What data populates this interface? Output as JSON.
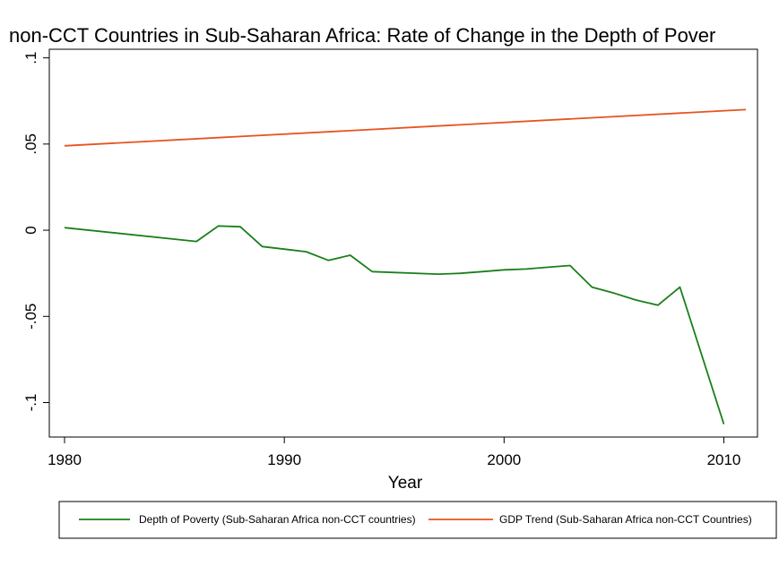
{
  "chart_data": {
    "type": "line",
    "title": "non-CCT Countries in Sub-Saharan Africa: Rate of Change in the Depth of Pover",
    "xlabel": "Year",
    "ylabel": "",
    "xlim": [
      1980,
      2011
    ],
    "ylim": [
      -0.12,
      0.105
    ],
    "x_ticks": [
      1980,
      1990,
      2000,
      2010
    ],
    "x_tick_labels": [
      "1980",
      "1990",
      "2000",
      "2010"
    ],
    "y_ticks": [
      0.1,
      0.05,
      0,
      -0.05,
      -0.1
    ],
    "y_tick_labels": [
      ".1",
      ".05",
      "0",
      "-.05",
      "-.1"
    ],
    "grid": false,
    "legend_position": "bottom",
    "series": [
      {
        "name": "Depth of Poverty (Sub-Saharan Africa non-CCT countries)",
        "color": "#1a7f1a",
        "x": [
          1980,
          1986,
          1987,
          1988,
          1989,
          1990,
          1991,
          1992,
          1993,
          1994,
          1997,
          1998,
          1999,
          2000,
          2001,
          2002,
          2003,
          2004,
          2005,
          2006,
          2007,
          2008,
          2010
        ],
        "y": [
          0.0015,
          -0.0065,
          0.0025,
          0.002,
          -0.0095,
          -0.011,
          -0.0125,
          -0.0175,
          -0.0145,
          -0.024,
          -0.0255,
          -0.025,
          -0.024,
          -0.023,
          -0.0225,
          -0.0215,
          -0.0205,
          -0.033,
          -0.0365,
          -0.0405,
          -0.0435,
          -0.033,
          -0.1125
        ]
      },
      {
        "name": "GDP Trend (Sub-Saharan Africa non-CCT Countries)",
        "color": "#e8531e",
        "x": [
          1980,
          2011
        ],
        "y": [
          0.049,
          0.07
        ]
      }
    ]
  }
}
